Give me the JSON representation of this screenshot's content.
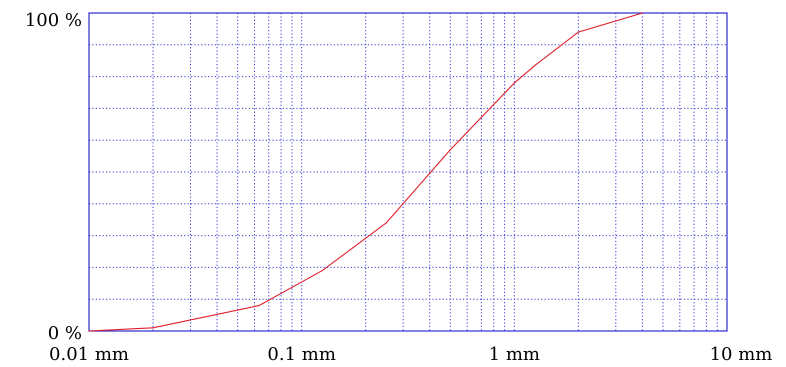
{
  "colors": {
    "frame": "#2b2bcc",
    "grid": "#3a3ad6",
    "curve": "#e0202a",
    "text": "#000000"
  },
  "chart_data": {
    "type": "line",
    "title": "",
    "xlabel": "",
    "ylabel": "",
    "x_scale": "log",
    "xlim": [
      0.01,
      10
    ],
    "ylim": [
      0,
      100
    ],
    "x_tick_labels": [
      {
        "value": 0.01,
        "label": "0.01 mm"
      },
      {
        "value": 0.1,
        "label": "0.1 mm"
      },
      {
        "value": 1,
        "label": "1 mm"
      },
      {
        "value": 10,
        "label": "10 mm"
      }
    ],
    "y_tick_labels": [
      {
        "value": 0,
        "label": "0 %"
      },
      {
        "value": 100,
        "label": "100 %"
      }
    ],
    "y_gridlines": [
      10,
      20,
      30,
      40,
      50,
      60,
      70,
      80,
      90
    ],
    "grid": true,
    "series": [
      {
        "x": [
          0.01,
          0.02,
          0.063,
          0.125,
          0.25,
          0.5,
          1,
          1.25,
          2,
          4
        ],
        "y": [
          0,
          1,
          8,
          19,
          34,
          57,
          78,
          83.5,
          94,
          100
        ]
      }
    ]
  }
}
